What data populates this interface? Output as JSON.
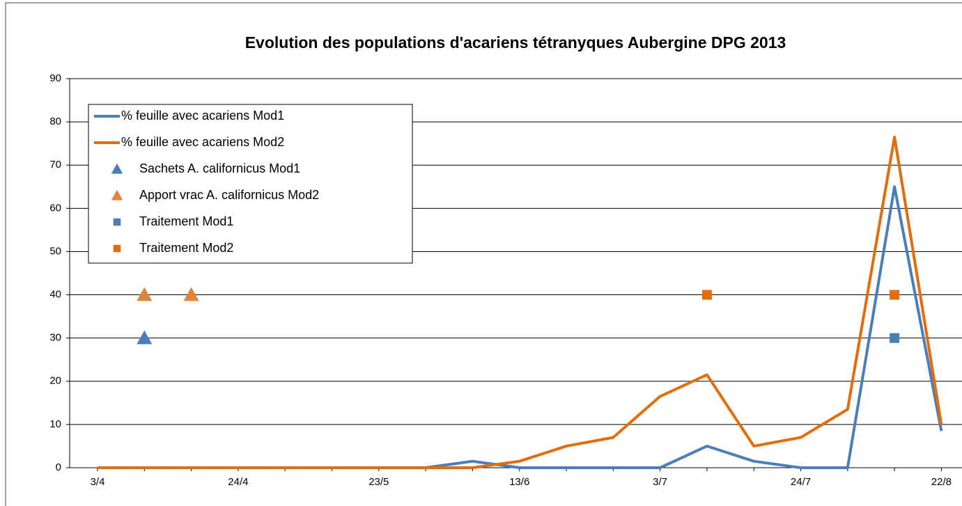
{
  "chart_data": {
    "type": "line",
    "title": "Evolution des populations d'acariens tétranyques Aubergine DPG 2013",
    "categories": [
      "3/4",
      null,
      null,
      "24/4",
      null,
      null,
      "23/5",
      null,
      null,
      "13/6",
      null,
      null,
      "3/7",
      null,
      null,
      "24/7",
      null,
      null,
      "22/8"
    ],
    "series": [
      {
        "name": "% feuille avec acariens Mod1",
        "color": "#4a7ebb",
        "marker": "line",
        "values": [
          0,
          0,
          0,
          0,
          0,
          0,
          0,
          0,
          1.5,
          0,
          0,
          0,
          0,
          5,
          1.5,
          0,
          0,
          65,
          8.5
        ]
      },
      {
        "name": "% feuille avec acariens Mod2",
        "color": "#e46c0a",
        "marker": "line",
        "values": [
          0,
          0,
          0,
          0,
          0,
          0,
          0,
          0,
          0,
          1.5,
          5,
          7,
          16.5,
          21.5,
          5,
          7,
          13.5,
          76.5,
          10
        ]
      },
      {
        "name": "Sachets A. californicus Mod1",
        "color": "#4a7ebb",
        "marker": "triangle",
        "values": [
          null,
          30,
          null,
          null,
          null,
          null,
          null,
          null,
          null,
          null,
          null,
          null,
          null,
          null,
          null,
          null,
          null,
          null,
          null
        ]
      },
      {
        "name": "Apport vrac A. californicus Mod2",
        "color": "#e0843c",
        "marker": "triangle",
        "values": [
          null,
          40,
          40,
          null,
          null,
          null,
          null,
          null,
          null,
          null,
          null,
          null,
          null,
          null,
          null,
          null,
          null,
          null,
          null
        ]
      },
      {
        "name": "Traitement Mod1",
        "color": "#4a7ebb",
        "marker": "square",
        "values": [
          null,
          null,
          null,
          null,
          null,
          null,
          null,
          null,
          null,
          null,
          null,
          null,
          null,
          null,
          null,
          null,
          null,
          30,
          null
        ]
      },
      {
        "name": "Traitement Mod2",
        "color": "#e46c0a",
        "marker": "square",
        "values": [
          null,
          null,
          null,
          null,
          null,
          null,
          null,
          null,
          null,
          null,
          null,
          null,
          null,
          40,
          null,
          null,
          null,
          40,
          null
        ]
      }
    ],
    "ylim": [
      0,
      90
    ],
    "yticks": [
      0,
      10,
      20,
      30,
      40,
      50,
      60,
      70,
      80,
      90
    ],
    "grid": true
  }
}
